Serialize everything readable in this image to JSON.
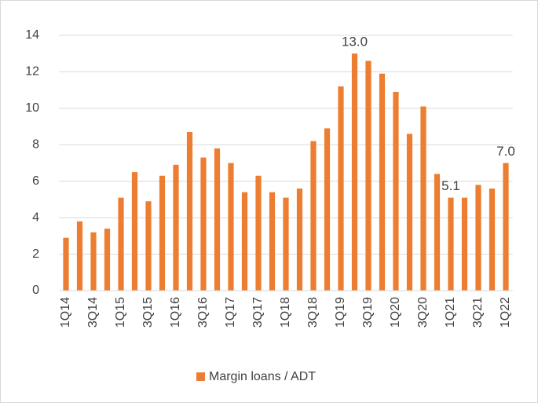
{
  "chart_data": {
    "type": "bar",
    "categories": [
      "1Q14",
      null,
      "3Q14",
      null,
      "1Q15",
      null,
      "3Q15",
      null,
      "1Q16",
      null,
      "3Q16",
      null,
      "1Q17",
      null,
      "3Q17",
      null,
      "1Q18",
      null,
      "3Q18",
      null,
      "1Q19",
      null,
      "3Q19",
      null,
      "1Q20",
      null,
      "3Q20",
      null,
      "1Q21",
      null,
      "3Q21",
      null,
      "1Q22"
    ],
    "series": [
      {
        "name": "Margin loans / ADT",
        "color": "#ed7d31",
        "values": [
          2.9,
          3.8,
          3.2,
          3.4,
          5.1,
          6.5,
          4.9,
          6.3,
          6.9,
          8.7,
          7.3,
          7.8,
          7.0,
          5.4,
          6.3,
          5.4,
          5.1,
          5.6,
          8.2,
          8.9,
          11.2,
          13.0,
          12.6,
          11.9,
          10.9,
          8.6,
          10.1,
          6.4,
          5.1,
          5.1,
          5.8,
          5.6,
          7.0
        ],
        "value_labels": [
          null,
          null,
          null,
          null,
          null,
          null,
          null,
          null,
          null,
          null,
          null,
          null,
          null,
          null,
          null,
          null,
          null,
          null,
          null,
          null,
          null,
          "13.0",
          null,
          null,
          null,
          null,
          null,
          null,
          "5.1",
          null,
          null,
          null,
          "7.0"
        ]
      }
    ],
    "ylim": [
      0,
      14
    ],
    "yticks": [
      0,
      2,
      4,
      6,
      8,
      10,
      12,
      14
    ],
    "grid": true,
    "legend": "bottom"
  }
}
